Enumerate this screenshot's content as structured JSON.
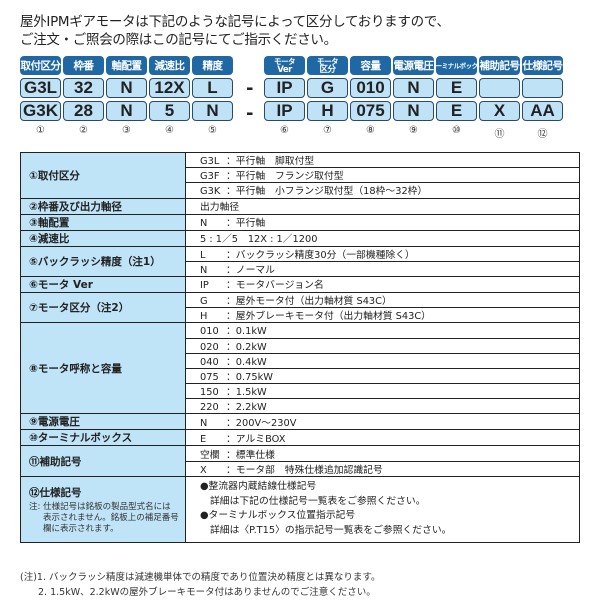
{
  "header": {
    "line1": "屋外IPMギアモータは下記のような記号によって区分しておりますので、",
    "line2": "ご注文・ご照会の際はこの記号にてご指示ください。"
  },
  "codes": {
    "dash": "-",
    "columns": [
      {
        "label": "取付区分",
        "row1": "G3L",
        "row2": "G3K",
        "num": "①"
      },
      {
        "label": "枠番",
        "row1": "32",
        "row2": "28",
        "num": "②"
      },
      {
        "label": "軸配置",
        "row1": "N",
        "row2": "N",
        "num": "③"
      },
      {
        "label": "減速比",
        "row1": "12X",
        "row2": "5",
        "num": "④"
      },
      {
        "label": "精度",
        "row1": "L",
        "row2": "N",
        "num": "⑤"
      },
      {
        "label_top": "モータ",
        "label_bottom": "Ver",
        "row1": "IP",
        "row2": "IP",
        "num": "⑥"
      },
      {
        "label_top": "モータ",
        "label_bottom": "区分",
        "row1": "G",
        "row2": "H",
        "num": "⑦"
      },
      {
        "label": "容量",
        "row1": "010",
        "row2": "075",
        "num": "⑧"
      },
      {
        "label": "電源電圧",
        "row1": "N",
        "row2": "N",
        "num": "⑨"
      },
      {
        "label": "ターミナルボックス",
        "row1": "E",
        "row2": "E",
        "num": "⑩"
      },
      {
        "label": "補助記号",
        "row1": "",
        "row2": "X",
        "num": "⑪"
      },
      {
        "label": "仕様記号",
        "row1": "",
        "row2": "AA",
        "num": "⑫"
      }
    ]
  },
  "table": {
    "mount": {
      "head": "①取付区分",
      "rows": [
        {
          "c": "G3L",
          "t": "：平行軸　脚取付型"
        },
        {
          "c": "G3F",
          "t": "：平行軸　フランジ取付型"
        },
        {
          "c": "G3K",
          "t": "：平行軸　小フランジ取付型（18枠～32枠）"
        }
      ]
    },
    "frame": {
      "head": "②枠番及び出力軸径",
      "t": "出力軸径"
    },
    "shaft": {
      "head": "③軸配置",
      "c": "N",
      "t": "：平行軸"
    },
    "ratio": {
      "head": "④減速比",
      "t": "5 : 1／5　12X : 1／1200"
    },
    "backlash": {
      "head": "⑤バックラッシ精度（注1）",
      "rows": [
        {
          "c": "L",
          "t": "：バックラッシ精度30分（一部機種除く）"
        },
        {
          "c": "N",
          "t": "：ノーマル"
        }
      ]
    },
    "ver": {
      "head": "⑥モータ Ver",
      "c": "IP",
      "t": "：モータバージョン名"
    },
    "motor": {
      "head": "⑦モータ区分（注2）",
      "rows": [
        {
          "c": "G",
          "t": "：屋外モータ付（出力軸材質 S43C）"
        },
        {
          "c": "H",
          "t": "：屋外ブレーキモータ付（出力軸材質 S43C）"
        }
      ]
    },
    "capacity": {
      "head": "⑧モータ呼称と容量",
      "rows": [
        {
          "c": "010",
          "t": "：0.1kW"
        },
        {
          "c": "020",
          "t": "：0.2kW"
        },
        {
          "c": "040",
          "t": "：0.4kW"
        },
        {
          "c": "075",
          "t": "：0.75kW"
        },
        {
          "c": "150",
          "t": "：1.5kW"
        },
        {
          "c": "220",
          "t": "：2.2kW"
        }
      ]
    },
    "voltage": {
      "head": "⑨電源電圧",
      "c": "N",
      "t": "：200V～230V"
    },
    "terminal": {
      "head": "⑩ターミナルボックス",
      "c": "E",
      "t": "：アルミBOX"
    },
    "aux": {
      "head": "⑪補助記号",
      "rows": [
        {
          "c": "空欄",
          "t": "：標準仕様"
        },
        {
          "c": "X",
          "t": "：モータ部　特殊仕様追加認識記号"
        }
      ]
    },
    "spec": {
      "head": "⑫仕様記号",
      "note1": "注: 仕様記号は銘板の製品型式名には",
      "note2": "表示されません。銘板上の補足番号",
      "note3": "欄に表示されます。",
      "l1": "●整流器内蔵結線仕様記号",
      "l2": "詳細は下記の仕様記号一覧表をご参照ください。",
      "l3": "●ターミナルボックス位置指示記号",
      "l4": "詳細は〈P.T15〉の指示記号一覧表をご参照ください。"
    }
  },
  "footnotes": {
    "n1": "(注)1. バックラッシ精度は減速機単体での精度であり位置決め精度とは異なります。",
    "n2": "2. 1.5kW、2.2kWの屋外ブレーキモータ付はありませんのでご注意ください。"
  },
  "colors": {
    "label_bg": "#1f68a3",
    "box_bg": "#bfe2f6",
    "header_cell_bg": "#bfe3f7"
  }
}
